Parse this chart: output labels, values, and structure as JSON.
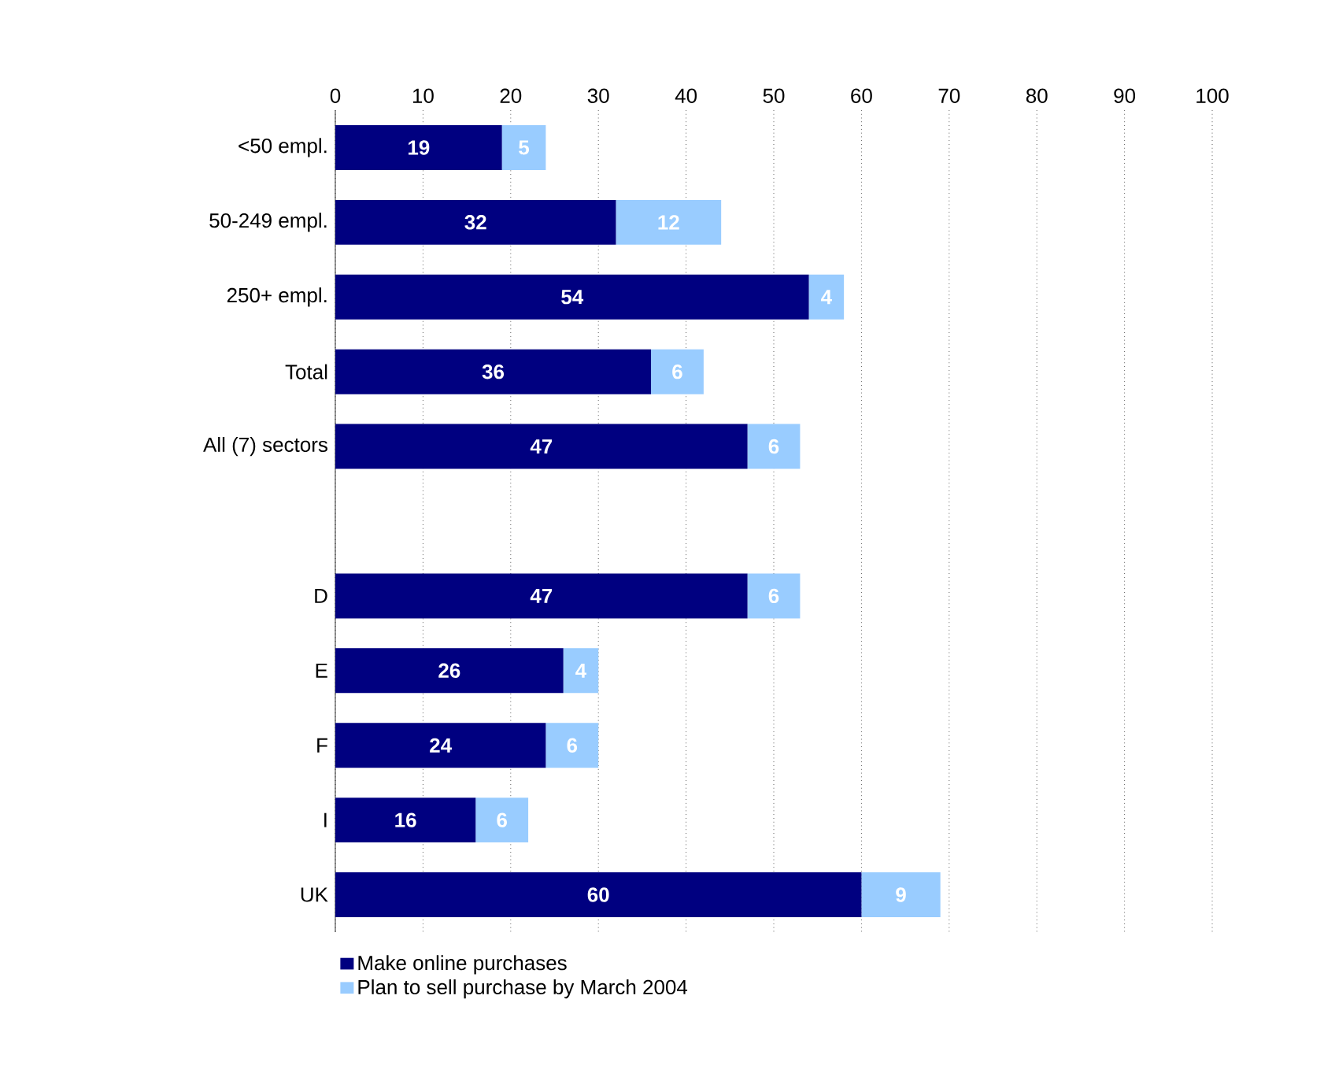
{
  "chart_data": {
    "type": "bar",
    "orientation": "horizontal",
    "stacked": true,
    "categories": [
      "<50 empl.",
      "50-249 empl.",
      "250+ empl.",
      "Total",
      "All (7) sectors",
      null,
      "D",
      "E",
      "F",
      "I",
      "UK"
    ],
    "series": [
      {
        "name": "Make online purchases",
        "color": "#000080",
        "values": [
          19,
          32,
          54,
          36,
          47,
          null,
          47,
          26,
          24,
          16,
          60
        ]
      },
      {
        "name": "Plan to sell purchase by March 2004",
        "color": "#99ccff",
        "values": [
          5,
          12,
          4,
          6,
          6,
          null,
          6,
          4,
          6,
          6,
          9
        ]
      }
    ],
    "xlim": [
      0,
      100
    ],
    "xticks": [
      0,
      10,
      20,
      30,
      40,
      50,
      60,
      70,
      80,
      90,
      100
    ],
    "grid": "x",
    "legend": "bottom",
    "data_labels": true
  }
}
